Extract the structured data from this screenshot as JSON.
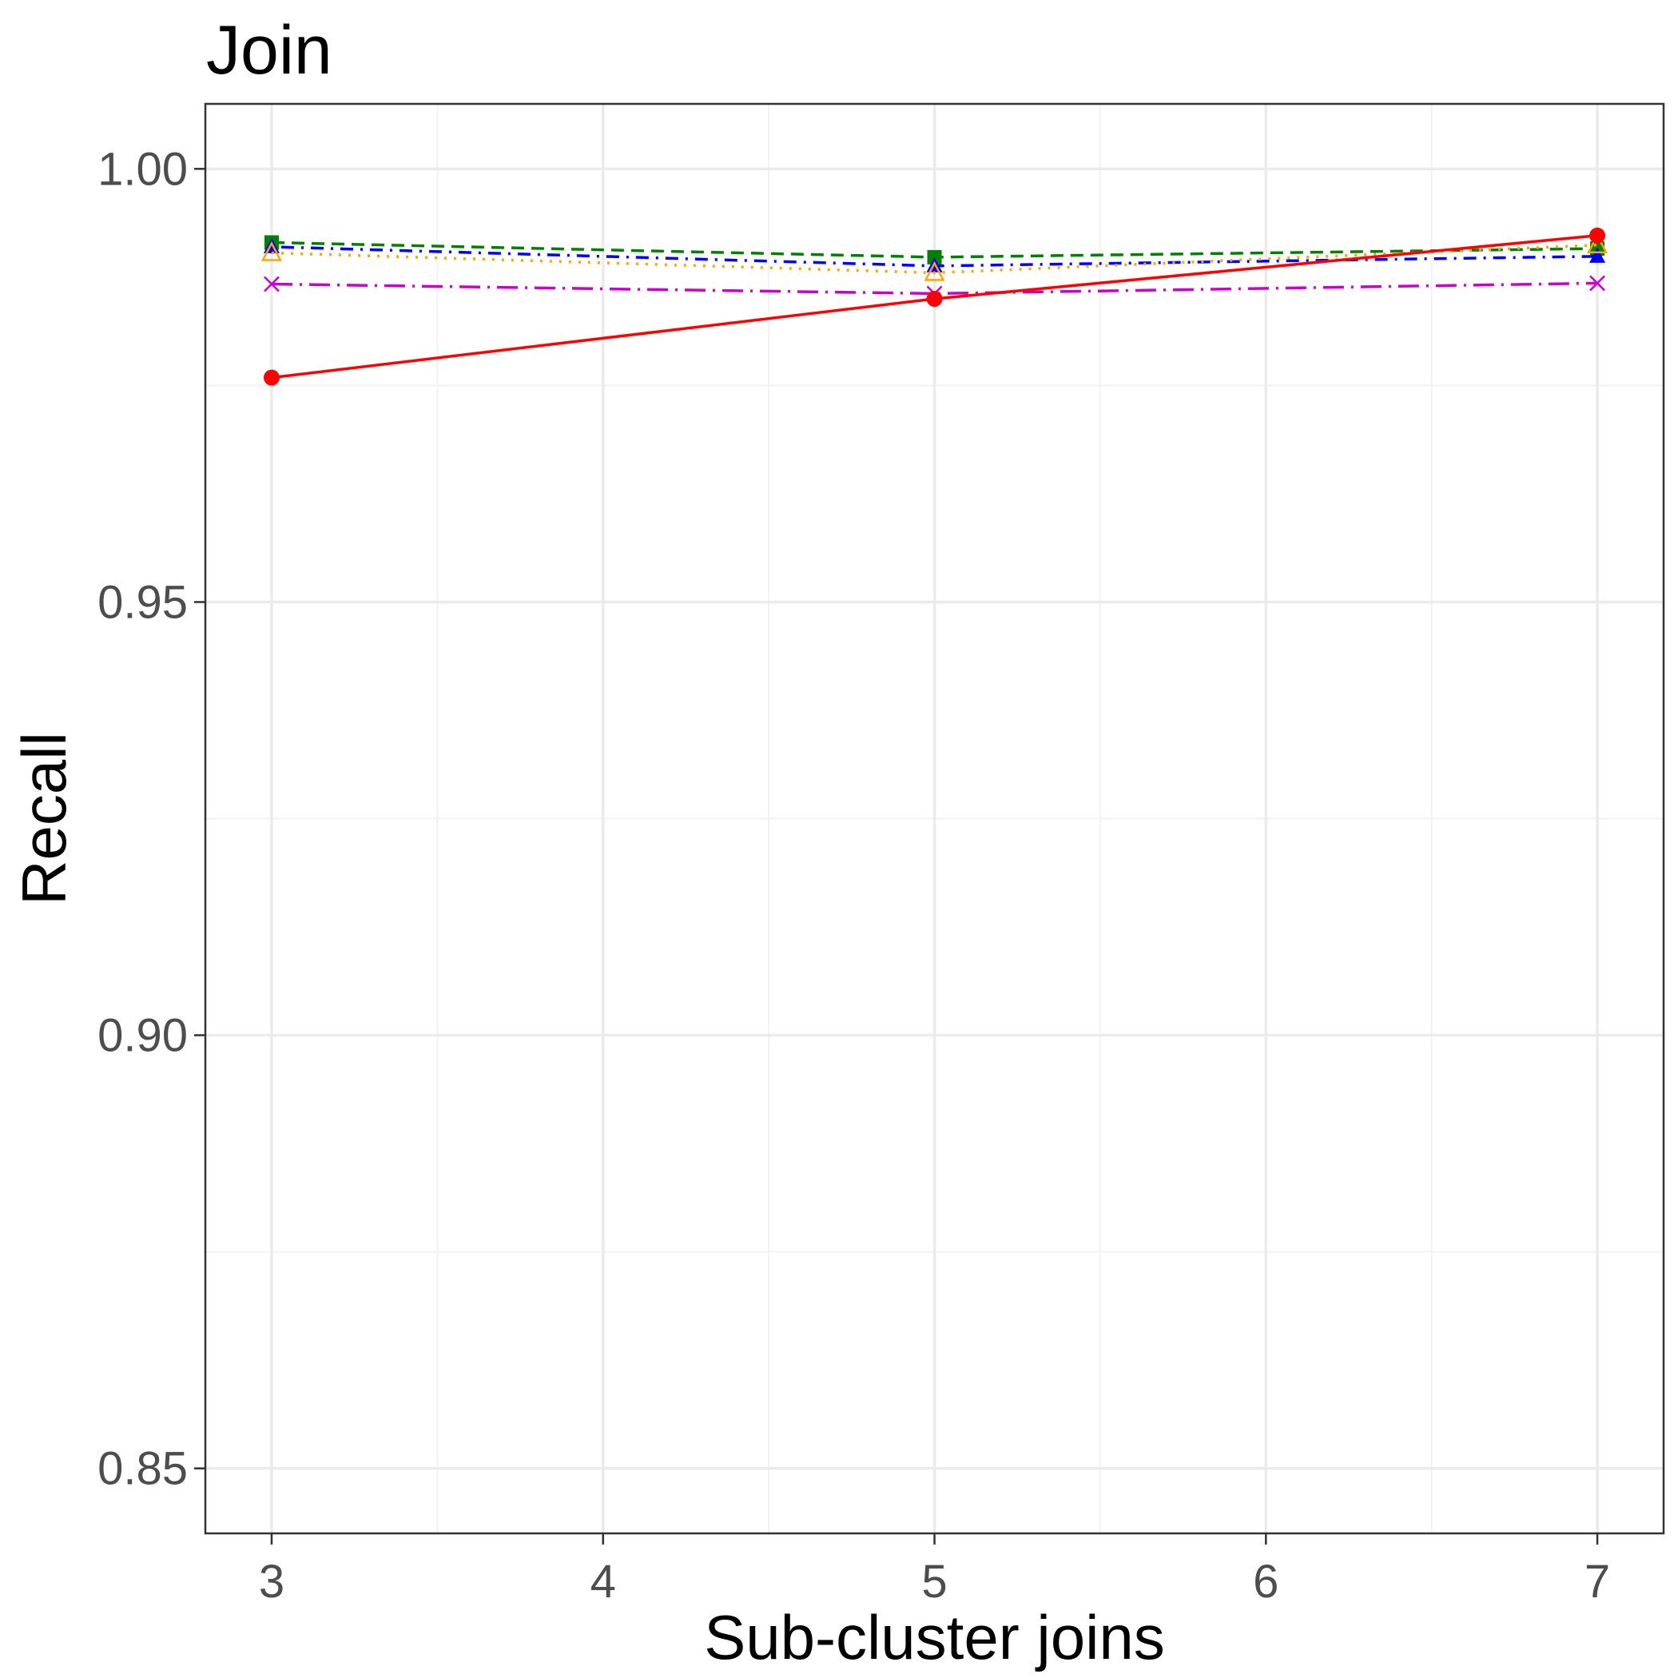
{
  "chart_data": {
    "type": "line",
    "title": "Join",
    "xlabel": "Sub-cluster joins",
    "ylabel": "Recall",
    "xlim": [
      2.8,
      7.2
    ],
    "ylim": [
      0.8425,
      1.0075
    ],
    "x_ticks": [
      3,
      4,
      5,
      6,
      7
    ],
    "x_tick_labels": [
      "3",
      "4",
      "5",
      "6",
      "7"
    ],
    "y_ticks": [
      0.85,
      0.9,
      0.95,
      1.0
    ],
    "y_tick_labels": [
      "0.85",
      "0.90",
      "0.95",
      "1.00"
    ],
    "grid": true,
    "legend": "none",
    "x": [
      3,
      5,
      7
    ],
    "series": [
      {
        "values": [
          0.9915,
          0.9898,
          0.9908
        ],
        "color": "#008000",
        "dash": "dashed",
        "marker": "square"
      },
      {
        "values": [
          0.991,
          0.9888,
          0.9899
        ],
        "color": "#0000ff",
        "dash": "dotdash",
        "marker": "triangle-filled"
      },
      {
        "values": [
          0.9903,
          0.988,
          0.9912
        ],
        "color": "#ffa500",
        "dash": "dotted",
        "marker": "triangle-open"
      },
      {
        "values": [
          0.9867,
          0.9856,
          0.9868
        ],
        "color": "#cc00cc",
        "dash": "longdash-dot",
        "marker": "x"
      },
      {
        "values": [
          0.9759,
          0.985,
          0.9923
        ],
        "color": "#ff0000",
        "dash": "solid",
        "marker": "circle"
      }
    ]
  }
}
